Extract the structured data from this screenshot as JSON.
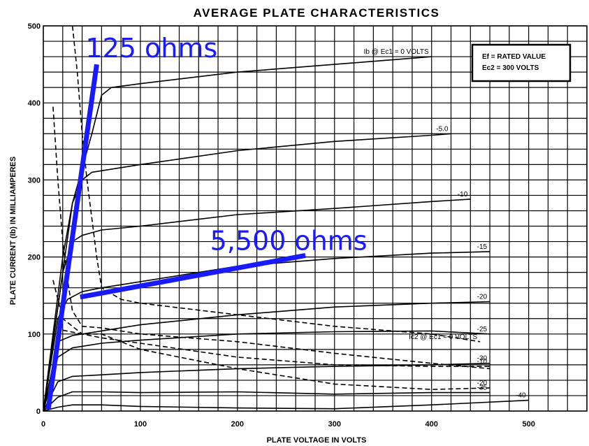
{
  "chart_data": {
    "type": "line",
    "title": "AVERAGE PLATE CHARACTERISTICS",
    "xlabel": "PLATE VOLTAGE IN VOLTS",
    "ylabel": "PLATE CURRENT (Ib) IN MILLIAMPERES",
    "xlim": [
      0,
      560
    ],
    "ylim": [
      0,
      500
    ],
    "x_ticks": [
      "0",
      "100",
      "200",
      "300",
      "400",
      "500"
    ],
    "y_ticks": [
      "0",
      "100",
      "200",
      "300",
      "400",
      "500"
    ],
    "grid": true,
    "conditions": [
      "Ef = RATED VALUE",
      "Ec2 = 300 VOLTS"
    ],
    "series": [
      {
        "name": "Ib @ Ec1 = 0 VOLTS",
        "style": "solid",
        "x": [
          0,
          30,
          50,
          60,
          70,
          100,
          200,
          300,
          400
        ],
        "y": [
          0,
          270,
          360,
          410,
          420,
          425,
          440,
          450,
          460
        ],
        "label_text": "Ib @ Ec1 = 0 VOLTS"
      },
      {
        "name": "-5.0",
        "style": "solid",
        "x": [
          0,
          20,
          30,
          40,
          50,
          100,
          200,
          300,
          400,
          420
        ],
        "y": [
          0,
          200,
          270,
          300,
          310,
          320,
          338,
          350,
          358,
          360
        ],
        "label_text": "-5.0"
      },
      {
        "name": "-10",
        "style": "solid",
        "x": [
          0,
          20,
          30,
          40,
          60,
          100,
          200,
          300,
          400,
          440
        ],
        "y": [
          0,
          180,
          220,
          228,
          235,
          240,
          255,
          263,
          272,
          275
        ],
        "label_text": "-10"
      },
      {
        "name": "-15",
        "style": "solid",
        "x": [
          0,
          15,
          25,
          40,
          60,
          100,
          200,
          300,
          400,
          460
        ],
        "y": [
          0,
          120,
          145,
          155,
          160,
          168,
          188,
          198,
          205,
          207
        ],
        "label_text": "-15"
      },
      {
        "name": "-20",
        "style": "solid",
        "x": [
          0,
          15,
          30,
          60,
          100,
          200,
          300,
          400,
          460
        ],
        "y": [
          0,
          90,
          98,
          104,
          112,
          125,
          135,
          140,
          142
        ],
        "label_text": "-20"
      },
      {
        "name": "-25",
        "style": "solid",
        "x": [
          0,
          15,
          30,
          60,
          100,
          200,
          300,
          400,
          460
        ],
        "y": [
          0,
          70,
          82,
          88,
          92,
          100,
          103,
          104,
          100
        ],
        "label_text": "-25"
      },
      {
        "name": "-30",
        "style": "solid",
        "x": [
          0,
          15,
          30,
          60,
          100,
          200,
          300,
          400,
          460
        ],
        "y": [
          0,
          38,
          45,
          47,
          50,
          55,
          58,
          60,
          62
        ],
        "label_text": "-30"
      },
      {
        "name": "-35",
        "style": "solid",
        "x": [
          0,
          15,
          30,
          60,
          100,
          200,
          300,
          400,
          460
        ],
        "y": [
          0,
          18,
          25,
          25,
          24,
          25,
          22,
          24,
          24
        ],
        "label_text": "-35"
      },
      {
        "name": "-40",
        "style": "solid",
        "x": [
          0,
          15,
          30,
          60,
          100,
          200,
          300,
          400,
          500
        ],
        "y": [
          0,
          5,
          8,
          8,
          6,
          4,
          3,
          8,
          14
        ],
        "label_text": "-40"
      },
      {
        "name": "Ic2 @ Ec1 = 0 VOLTS",
        "style": "dashed",
        "x": [
          30,
          35,
          40,
          45,
          50,
          55,
          60,
          80,
          100,
          200,
          300,
          400,
          450
        ],
        "y": [
          500,
          440,
          360,
          300,
          250,
          200,
          160,
          145,
          140,
          125,
          110,
          100,
          90
        ],
        "label_text": "Ic2 @ Ec1 = 0 VOLTS"
      },
      {
        "name": "-5.0 (screen)",
        "style": "dashed",
        "x": [
          10,
          15,
          20,
          25,
          30,
          40,
          60,
          100,
          200,
          300,
          400,
          460
        ],
        "y": [
          395,
          300,
          220,
          170,
          130,
          110,
          108,
          100,
          90,
          75,
          62,
          55
        ],
        "label_text": ""
      },
      {
        "name": "-10 (screen)",
        "style": "dashed",
        "x": [
          10,
          20,
          30,
          40,
          60,
          100,
          200,
          300,
          400,
          460
        ],
        "y": [
          170,
          120,
          110,
          100,
          95,
          88,
          70,
          60,
          58,
          58
        ],
        "label_text": "-10"
      },
      {
        "name": "-20 (screen)",
        "style": "dashed",
        "x": [
          20,
          40,
          60,
          100,
          200,
          300,
          400,
          460
        ],
        "y": [
          105,
          100,
          100,
          80,
          55,
          35,
          28,
          30
        ],
        "label_text": "-20"
      }
    ],
    "annotations": [
      {
        "text": "125 ohms",
        "line": [
          [
            5,
            2
          ],
          [
            55,
            450
          ]
        ]
      },
      {
        "text": "5,500 ohms",
        "line": [
          [
            38,
            148
          ],
          [
            270,
            202
          ]
        ]
      }
    ]
  }
}
